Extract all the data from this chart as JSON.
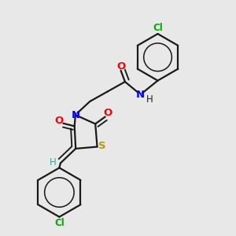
{
  "background_color": "#e8e8e8",
  "bond_color": "#1a1a1a",
  "atom_colors": {
    "O": "#ff0000",
    "N": "#0000ff",
    "S": "#b8960c",
    "Cl": "#00aa00",
    "H": "#20b2aa"
  },
  "figsize": [
    3.0,
    3.0
  ],
  "dpi": 100,
  "xlim": [
    0.0,
    1.0
  ],
  "ylim": [
    0.0,
    1.0
  ]
}
